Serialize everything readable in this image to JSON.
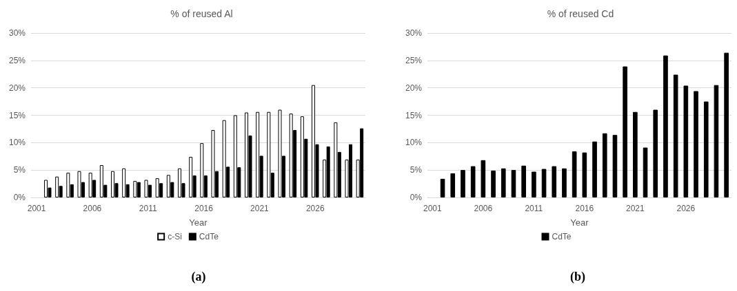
{
  "chart_data": [
    {
      "type": "bar",
      "title": "% of reused Al",
      "xlabel": "Year",
      "categories": [
        "2001",
        null,
        null,
        null,
        null,
        "2006",
        null,
        null,
        null,
        null,
        "2011",
        null,
        null,
        null,
        null,
        "2016",
        null,
        null,
        null,
        null,
        "2021",
        null,
        null,
        null,
        null,
        "2026",
        null,
        null,
        null,
        null
      ],
      "series": [
        {
          "name": "c-Si",
          "color": "#ffffff",
          "values": [
            null,
            3.2,
            3.8,
            4.5,
            4.8,
            4.5,
            5.9,
            4.8,
            5.3,
            3.0,
            3.2,
            3.5,
            4.1,
            5.3,
            7.4,
            9.9,
            12.3,
            14.1,
            15.0,
            15.5,
            15.6,
            15.6,
            16.0,
            15.3,
            14.8,
            20.5,
            6.9,
            13.7,
            6.9,
            6.9
          ]
        },
        {
          "name": "CdTe",
          "color": "#000000",
          "values": [
            null,
            1.8,
            2.1,
            2.4,
            2.8,
            3.2,
            2.3,
            2.6,
            2.4,
            2.8,
            2.3,
            2.6,
            2.8,
            2.6,
            4.0,
            4.0,
            4.8,
            5.6,
            5.5,
            11.3,
            7.6,
            4.5,
            7.6,
            12.3,
            10.7,
            9.7,
            9.3,
            8.3,
            9.7,
            12.6
          ]
        }
      ],
      "ylim": [
        0,
        30
      ],
      "yticks": [
        {
          "value": 0,
          "label": "0%"
        },
        {
          "value": 5,
          "label": "5%"
        },
        {
          "value": 10,
          "label": "10%"
        },
        {
          "value": 15,
          "label": "15%"
        },
        {
          "value": 20,
          "label": "20%"
        },
        {
          "value": 25,
          "label": "25%"
        },
        {
          "value": 30,
          "label": "30%"
        }
      ],
      "grid": "y",
      "legend": "bottom",
      "annotations": [
        "(a)"
      ]
    },
    {
      "type": "bar",
      "title": "% of reused Cd",
      "xlabel": "Year",
      "categories": [
        "2001",
        null,
        null,
        null,
        null,
        "2006",
        null,
        null,
        null,
        null,
        "2011",
        null,
        null,
        null,
        null,
        "2016",
        null,
        null,
        null,
        null,
        "2021",
        null,
        null,
        null,
        null,
        "2026",
        null,
        null,
        null,
        null
      ],
      "series": [
        {
          "name": "CdTe",
          "color": "#000000",
          "values": [
            null,
            3.4,
            4.4,
            5.0,
            5.7,
            6.8,
            4.9,
            5.3,
            5.0,
            5.8,
            4.7,
            5.2,
            5.7,
            5.3,
            8.4,
            8.2,
            10.2,
            11.7,
            11.4,
            23.9,
            15.6,
            9.1,
            16.0,
            25.9,
            22.4,
            20.4,
            19.4,
            17.5,
            20.5,
            26.4
          ]
        }
      ],
      "ylim": [
        0,
        30
      ],
      "yticks": [
        {
          "value": 0,
          "label": "0%"
        },
        {
          "value": 5,
          "label": "5%"
        },
        {
          "value": 10,
          "label": "10%"
        },
        {
          "value": 15,
          "label": "15%"
        },
        {
          "value": 20,
          "label": "20%"
        },
        {
          "value": 25,
          "label": "25%"
        },
        {
          "value": 30,
          "label": "30%"
        }
      ],
      "grid": "y",
      "legend": "bottom",
      "annotations": [
        "(b)"
      ]
    }
  ]
}
